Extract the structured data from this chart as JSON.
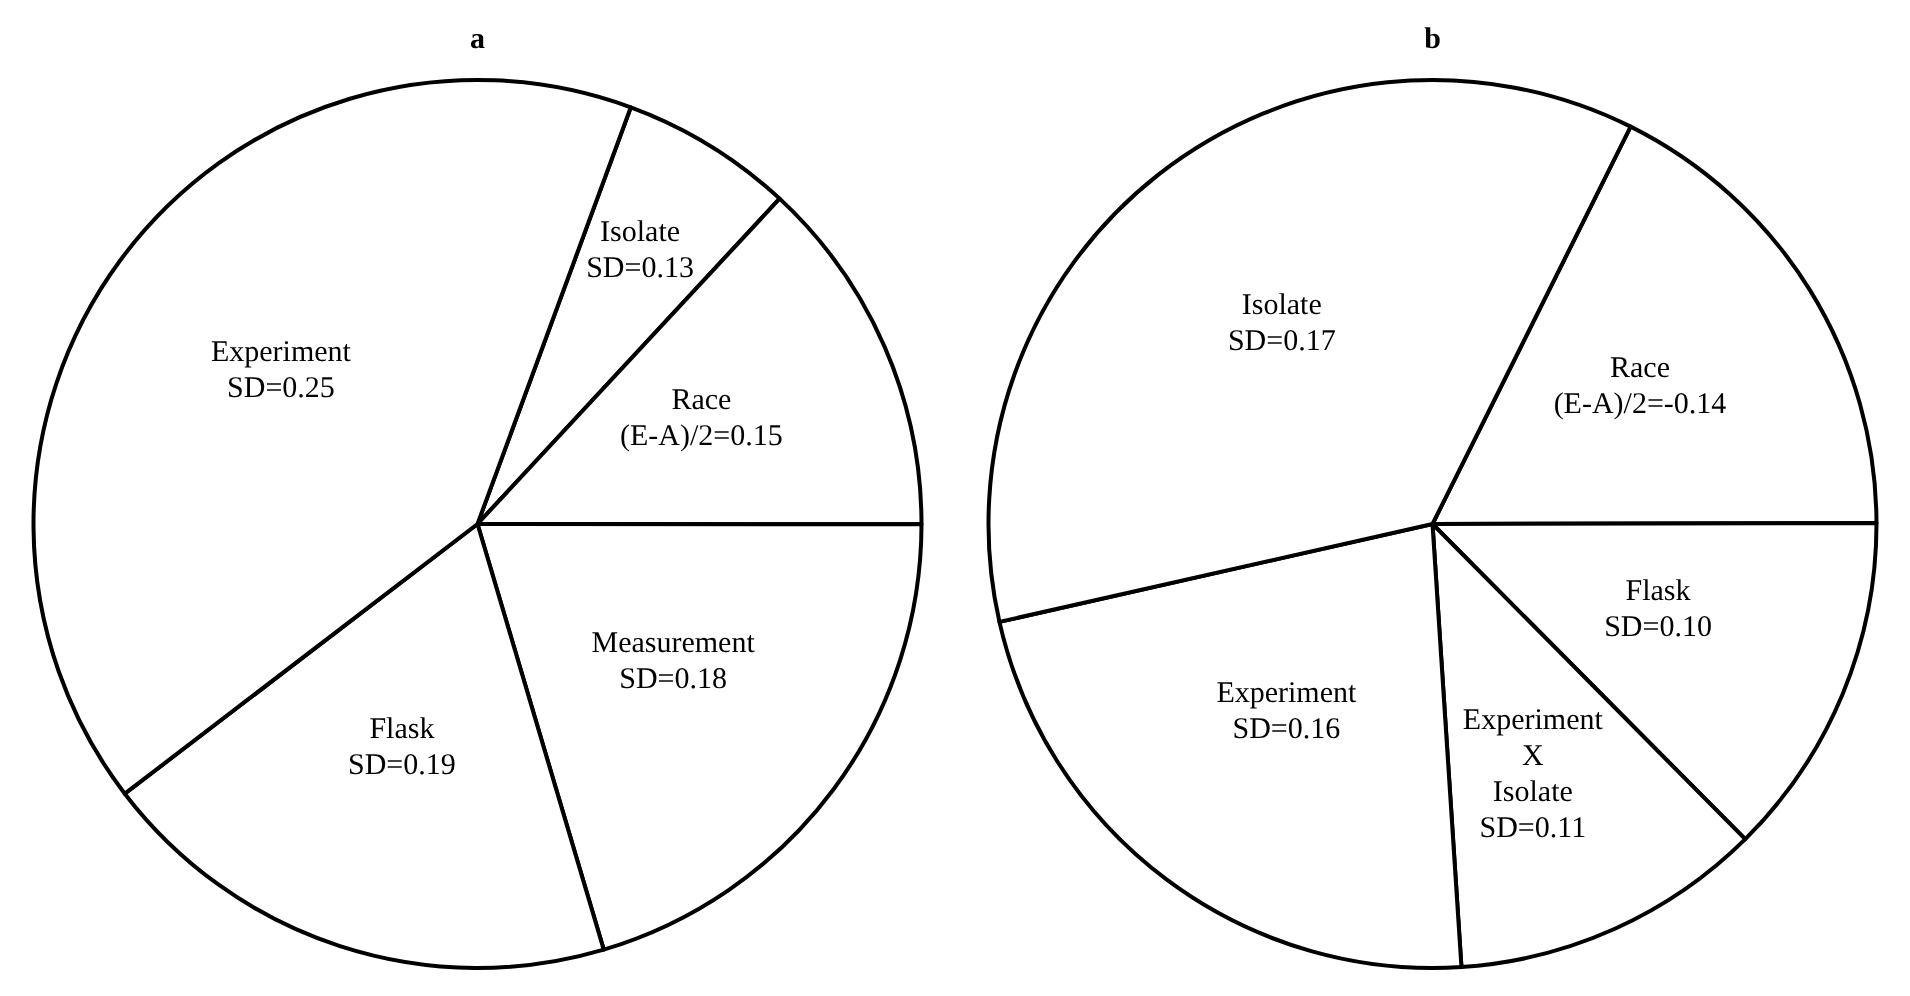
{
  "chart_data": [
    {
      "type": "pie",
      "title": "a",
      "categories": [
        "Isolate\nSD=0.13",
        "Race\n(E-A)/2=0.15",
        "Measurement\nSD=0.18",
        "Flask\nSD=0.19",
        "Experiment\nSD=0.25"
      ],
      "values": [
        6.3,
        13.1,
        20.4,
        19.2,
        41.0
      ],
      "colors": [
        "#ffffff",
        "#ffffff",
        "#ffffff",
        "#ffffff",
        "#ffffff"
      ]
    },
    {
      "type": "pie",
      "title": "b",
      "categories": [
        "Race\n(E-A)/2=-0.14",
        "Flask\nSD=0.10",
        "Experiment\nX\nIsolate\nSD=0.11",
        "Experiment\nSD=0.16",
        "Isolate\nSD=0.17"
      ],
      "values": [
        17.6,
        12.6,
        11.4,
        22.5,
        35.9
      ],
      "colors": [
        "#ffffff",
        "#ffffff",
        "#ffffff",
        "#ffffff",
        "#ffffff"
      ]
    }
  ]
}
